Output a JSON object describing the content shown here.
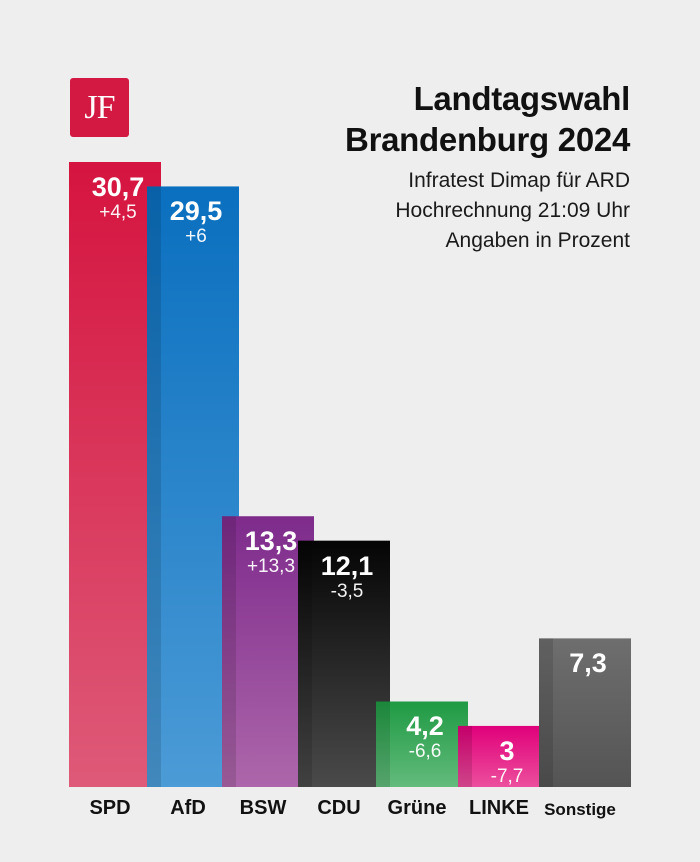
{
  "logo": {
    "text": "JF",
    "color": "#d31842"
  },
  "header": {
    "title_line1": "Landtagswahl",
    "title_line2": "Brandenburg 2024",
    "subtitle_line1": "Infratest Dimap für ARD",
    "subtitle_line2": "Hochrechnung 21:09 Uhr",
    "subtitle_line3": "Angaben in Prozent"
  },
  "chart_data": {
    "type": "bar",
    "title": "Landtagswahl Brandenburg 2024",
    "subtitle": "Infratest Dimap für ARD, Hochrechnung 21:09 Uhr, Angaben in Prozent",
    "xlabel": "",
    "ylabel": "",
    "ylim": [
      0,
      30.7
    ],
    "grid": false,
    "categories": [
      "SPD",
      "AfD",
      "BSW",
      "CDU",
      "Grüne",
      "LINKE",
      "Sonstige"
    ],
    "values": [
      30.7,
      29.5,
      13.3,
      12.1,
      4.2,
      3,
      7.3
    ],
    "value_labels": [
      "30,7",
      "29,5",
      "13,3",
      "12,1",
      "4,2",
      "3",
      "7,3"
    ],
    "change_labels": [
      "+4,5",
      "+6",
      "+13,3",
      "-3,5",
      "-6,6",
      "-7,7",
      ""
    ],
    "colors_top": [
      "#d5143f",
      "#0a6fbf",
      "#7e2b8c",
      "#050505",
      "#1f9a43",
      "#e0007a",
      "#6e6e6e"
    ],
    "colors_bottom": [
      "#de5a78",
      "#4b9bd6",
      "#ad66aa",
      "#4a4a4a",
      "#63bb7c",
      "#ec4f9d",
      "#545454"
    ]
  }
}
